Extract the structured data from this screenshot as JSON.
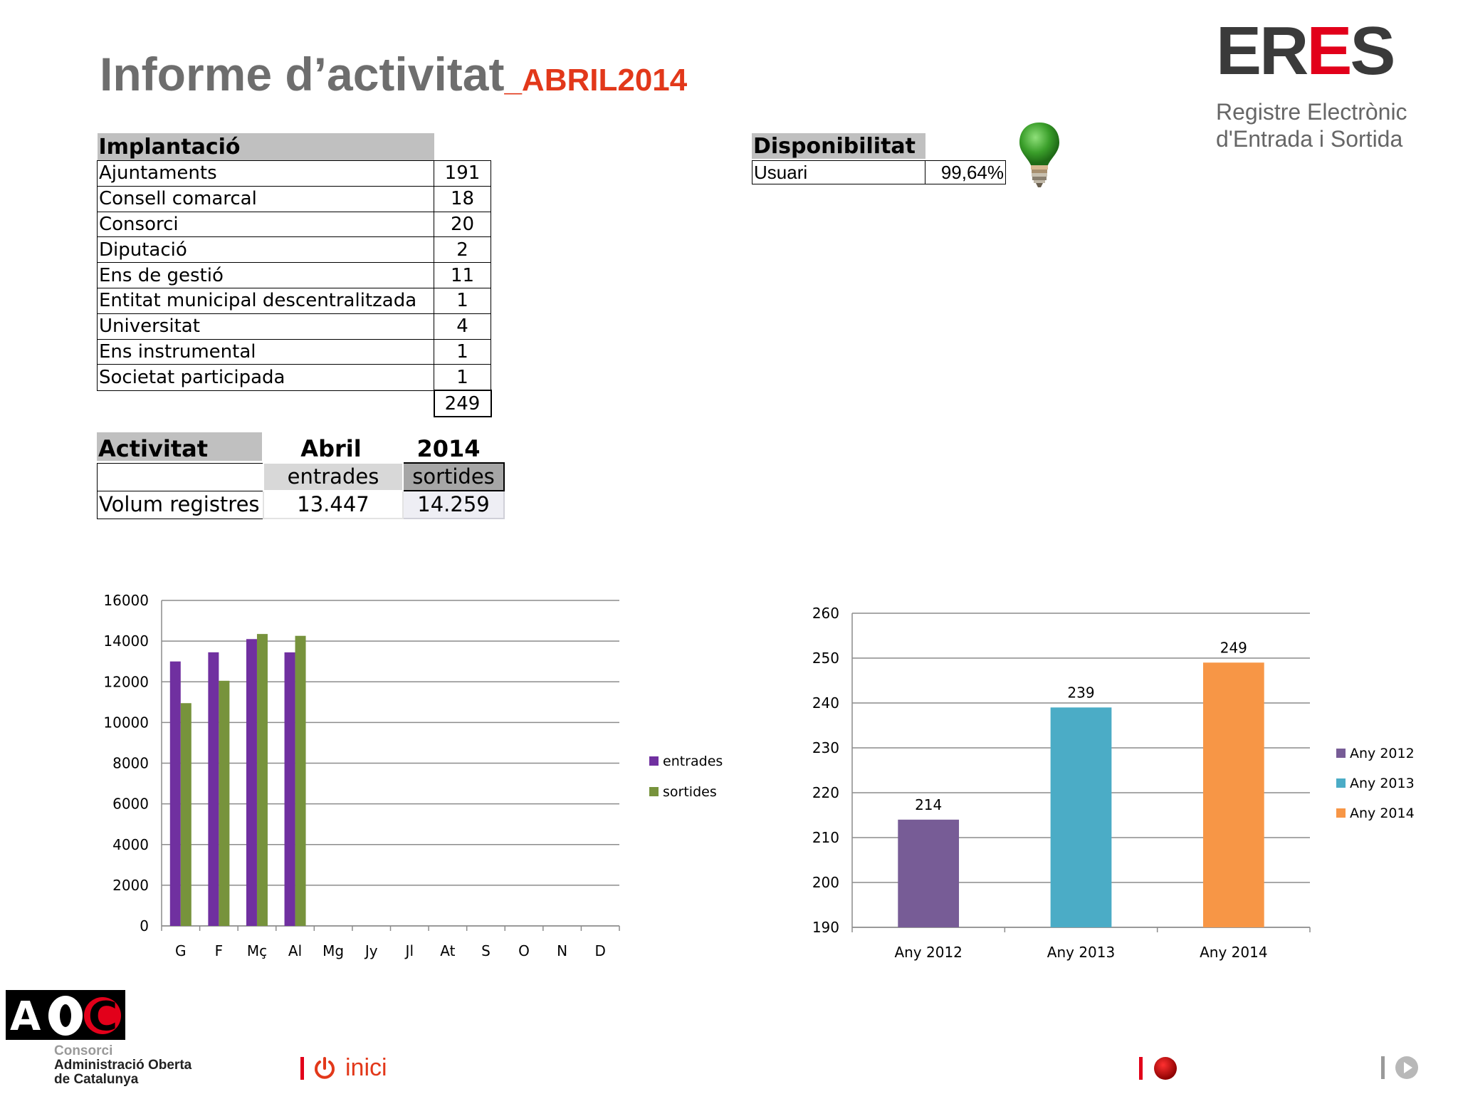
{
  "header": {
    "title": "Informe d’activitat",
    "title_suffix": "_ABRIL2014"
  },
  "logo": {
    "mark_a": "ER",
    "mark_b": "E",
    "mark_c": "S",
    "line1": "Registre Electrònic",
    "line2": "d'Entrada i Sortida"
  },
  "implantacio": {
    "heading": "Implantació",
    "rows": [
      {
        "label": "Ajuntaments",
        "value": "191"
      },
      {
        "label": "Consell comarcal",
        "value": "18"
      },
      {
        "label": "Consorci",
        "value": "20"
      },
      {
        "label": "Diputació",
        "value": "2"
      },
      {
        "label": "Ens de gestió",
        "value": "11"
      },
      {
        "label": "Entitat municipal descentralitzada",
        "value": "1"
      },
      {
        "label": "Universitat",
        "value": "4"
      },
      {
        "label": "Ens instrumental",
        "value": "1"
      },
      {
        "label": "Societat participada",
        "value": "1"
      }
    ],
    "total": "249"
  },
  "disponibilitat": {
    "heading": "Disponibilitat",
    "label": "Usuari",
    "value": "99,64%"
  },
  "activitat": {
    "heading": "Activitat",
    "month": "Abril",
    "year": "2014",
    "col_in": "entrades",
    "col_out": "sortides",
    "row_label": "Volum registres",
    "value_in": "13.447",
    "value_out": "14.259"
  },
  "chart_data": [
    {
      "type": "bar",
      "categories": [
        "G",
        "F",
        "Mç",
        "Al",
        "Mg",
        "Jy",
        "Jl",
        "At",
        "S",
        "O",
        "N",
        "D"
      ],
      "series": [
        {
          "name": "entrades",
          "color": "#7030a0",
          "values": [
            13000,
            13450,
            14100,
            13447,
            null,
            null,
            null,
            null,
            null,
            null,
            null,
            null
          ]
        },
        {
          "name": "sortides",
          "color": "#77933c",
          "values": [
            10950,
            12050,
            14350,
            14259,
            null,
            null,
            null,
            null,
            null,
            null,
            null,
            null
          ]
        }
      ],
      "ylim": [
        0,
        16000
      ],
      "yticks": [
        0,
        2000,
        4000,
        6000,
        8000,
        10000,
        12000,
        14000,
        16000
      ],
      "grid": true,
      "legend": "right"
    },
    {
      "type": "bar",
      "categories": [
        "Any 2012",
        "Any 2013",
        "Any 2014"
      ],
      "series": [
        {
          "name": "Any 2012",
          "color": "#775c96",
          "values": [
            214,
            null,
            null
          ]
        },
        {
          "name": "Any 2013",
          "color": "#4bacc6",
          "values": [
            null,
            239,
            null
          ]
        },
        {
          "name": "Any 2014",
          "color": "#f79646",
          "values": [
            null,
            null,
            249
          ]
        }
      ],
      "data_labels": [
        "214",
        "239",
        "249"
      ],
      "ylim": [
        190,
        260
      ],
      "yticks": [
        190,
        200,
        210,
        220,
        230,
        240,
        250,
        260
      ],
      "grid": true,
      "legend": "right"
    }
  ],
  "footer": {
    "aoc_mark": "AOC",
    "aoc_line1": "Consorci",
    "aoc_line2": "Administració Oberta",
    "aoc_line3": "de Catalunya",
    "inici_label": "inici"
  }
}
